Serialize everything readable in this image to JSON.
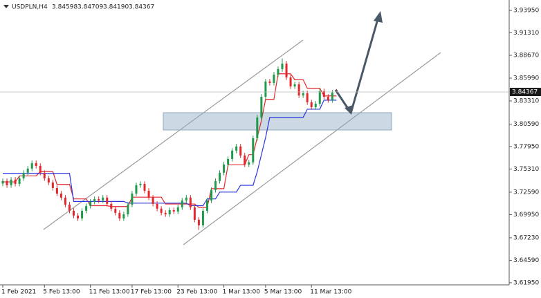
{
  "chart_data": {
    "type": "candlestick",
    "title": "USDPLN,H4",
    "ohlc_labels": [
      "3.84598",
      "3.84709",
      "3.84190",
      "3.84367"
    ],
    "categories": [
      "1 Feb 2021",
      null,
      null,
      null,
      null,
      null,
      null,
      null,
      null,
      null,
      "5 Feb 13:00",
      null,
      null,
      null,
      null,
      null,
      null,
      null,
      null,
      null,
      null,
      "11 Feb 13:00",
      null,
      null,
      null,
      null,
      null,
      null,
      null,
      null,
      null,
      "17 Feb 13:00",
      null,
      null,
      null,
      null,
      null,
      null,
      null,
      null,
      null,
      null,
      "23 Feb 13:00",
      null,
      null,
      null,
      null,
      null,
      null,
      null,
      null,
      null,
      null,
      "1 Mar 13:00",
      null,
      null,
      null,
      null,
      null,
      null,
      null,
      null,
      null,
      "5 Mar 13:00",
      null,
      null,
      null,
      null,
      null,
      null,
      null,
      null,
      null,
      null,
      "11 Mar 13:00",
      null,
      null,
      null,
      null,
      null,
      null
    ],
    "open": [
      3.736,
      3.739,
      3.7341,
      3.7406,
      3.7357,
      3.7422,
      3.7487,
      3.7536,
      3.7601,
      3.7568,
      3.7487,
      3.7422,
      3.7373,
      3.7308,
      3.7243,
      3.7195,
      3.7113,
      3.704,
      3.6984,
      3.6951,
      3.704,
      3.7097,
      3.7146,
      3.7178,
      3.7162,
      3.7195,
      3.7122,
      3.7065,
      3.7016,
      3.6951,
      3.6999,
      3.7113,
      3.7243,
      3.7341,
      3.7357,
      3.7276,
      3.7195,
      3.7122,
      3.7065,
      3.7016,
      3.6999,
      3.7048,
      3.7032,
      3.7081,
      3.7162,
      3.7195,
      3.7081,
      3.6935,
      3.687,
      3.704,
      3.7162,
      3.7284,
      3.739,
      3.7487,
      3.7584,
      3.7649,
      3.7747,
      3.7796,
      3.769,
      3.7584,
      3.7609,
      3.7893,
      3.8137,
      3.838,
      3.8559,
      3.8543,
      3.864,
      3.8705,
      3.877,
      3.8608,
      3.8502,
      3.8526,
      3.8396,
      3.8421,
      3.8315,
      3.8258,
      3.8299,
      3.8445,
      3.838,
      3.834,
      3.84598
    ],
    "high": [
      3.742,
      3.742,
      3.7436,
      3.7436,
      3.7452,
      3.7517,
      3.7566,
      3.7631,
      3.7631,
      3.7598,
      3.7517,
      3.7452,
      3.7403,
      3.7338,
      3.7273,
      3.7225,
      3.7143,
      3.707,
      3.7014,
      3.707,
      3.7127,
      3.7176,
      3.7208,
      3.7208,
      3.7225,
      3.7225,
      3.7152,
      3.7095,
      3.7046,
      3.7029,
      3.7143,
      3.7273,
      3.7371,
      3.7387,
      3.7387,
      3.7306,
      3.7225,
      3.7152,
      3.7095,
      3.7046,
      3.7078,
      3.7078,
      3.7111,
      3.7192,
      3.7225,
      3.7225,
      3.7111,
      3.6965,
      3.707,
      3.7192,
      3.7314,
      3.742,
      3.7517,
      3.7614,
      3.7679,
      3.7777,
      3.7826,
      3.7826,
      3.772,
      3.7639,
      3.7923,
      3.8167,
      3.841,
      3.8589,
      3.8589,
      3.867,
      3.8735,
      3.883,
      3.88,
      3.8638,
      3.8556,
      3.8556,
      3.8451,
      3.8451,
      3.8345,
      3.8329,
      3.8475,
      3.8475,
      3.841,
      3.8459,
      3.84709
    ],
    "low": [
      3.733,
      3.7311,
      3.7311,
      3.7327,
      3.7327,
      3.7392,
      3.7457,
      3.7506,
      3.7538,
      3.7457,
      3.7392,
      3.7343,
      3.7278,
      3.7213,
      3.7165,
      3.7083,
      3.701,
      3.6954,
      3.6921,
      3.6921,
      3.701,
      3.7067,
      3.7116,
      3.7132,
      3.7132,
      3.7092,
      3.7035,
      3.6986,
      3.6921,
      3.6921,
      3.6969,
      3.7083,
      3.7213,
      3.7311,
      3.7246,
      3.7165,
      3.7092,
      3.7035,
      3.6986,
      3.6969,
      3.6969,
      3.7002,
      3.7002,
      3.7051,
      3.7132,
      3.7051,
      3.6905,
      3.6815,
      3.684,
      3.701,
      3.7132,
      3.7254,
      3.736,
      3.7457,
      3.7554,
      3.7619,
      3.7717,
      3.766,
      3.7554,
      3.7554,
      3.7579,
      3.7863,
      3.8107,
      3.835,
      3.8513,
      3.8513,
      3.861,
      3.8675,
      3.8578,
      3.8472,
      3.8472,
      3.8366,
      3.8366,
      3.8285,
      3.8228,
      3.8228,
      3.8269,
      3.835,
      3.831,
      3.831,
      3.8419
    ],
    "close": [
      3.739,
      3.7341,
      3.7406,
      3.7357,
      3.7422,
      3.7487,
      3.7536,
      3.7601,
      3.7568,
      3.7487,
      3.7422,
      3.7373,
      3.7308,
      3.7243,
      3.7195,
      3.7113,
      3.704,
      3.6984,
      3.6951,
      3.704,
      3.7097,
      3.7146,
      3.7178,
      3.7162,
      3.7195,
      3.7122,
      3.7065,
      3.7016,
      3.6951,
      3.6999,
      3.7113,
      3.7243,
      3.7341,
      3.7357,
      3.7276,
      3.7195,
      3.7122,
      3.7065,
      3.7016,
      3.6999,
      3.7048,
      3.7032,
      3.7081,
      3.7162,
      3.7195,
      3.7081,
      3.6935,
      3.687,
      3.704,
      3.7162,
      3.7284,
      3.739,
      3.7487,
      3.7584,
      3.7649,
      3.7747,
      3.7796,
      3.769,
      3.7584,
      3.7609,
      3.7893,
      3.8137,
      3.838,
      3.8559,
      3.8543,
      3.864,
      3.8705,
      3.877,
      3.8608,
      3.8502,
      3.8526,
      3.8396,
      3.8421,
      3.8315,
      3.8258,
      3.8299,
      3.8445,
      3.838,
      3.834,
      3.8429,
      3.84367
    ],
    "up_color": "#1f9a4a",
    "down_color": "#e3262b",
    "series": [
      {
        "color": "#e3262b",
        "values": [
          3.738,
          3.738,
          3.738,
          3.738,
          3.745,
          3.745,
          3.745,
          3.745,
          3.745,
          3.75,
          3.75,
          3.75,
          3.75,
          3.735,
          3.735,
          3.735,
          3.735,
          3.718,
          3.718,
          3.718,
          3.718,
          3.71,
          3.71,
          3.71,
          3.71,
          3.71,
          3.709,
          3.709,
          3.709,
          3.709,
          3.709,
          3.72,
          3.72,
          3.72,
          3.72,
          3.72,
          3.72,
          3.72,
          3.72,
          3.712,
          3.712,
          3.712,
          3.712,
          3.712,
          3.712,
          3.712,
          3.712,
          3.708,
          3.708,
          3.708,
          3.73,
          3.73,
          3.73,
          3.73,
          3.758,
          3.758,
          3.758,
          3.758,
          3.758,
          3.77,
          3.77,
          3.79,
          3.81,
          3.835,
          3.835,
          3.835,
          3.865,
          3.865,
          3.865,
          3.865,
          3.858,
          3.858,
          3.858,
          3.848,
          3.848,
          3.848,
          3.848,
          3.839,
          3.839,
          3.839,
          3.839
        ]
      },
      {
        "color": "#2a35e0",
        "values": [
          3.748,
          3.748,
          3.748,
          3.748,
          3.748,
          3.748,
          3.748,
          3.748,
          3.748,
          3.748,
          3.748,
          3.748,
          3.748,
          3.748,
          3.748,
          3.748,
          3.748,
          3.715,
          3.715,
          3.715,
          3.715,
          3.715,
          3.715,
          3.715,
          3.715,
          3.715,
          3.715,
          3.715,
          3.715,
          3.715,
          3.713,
          3.713,
          3.713,
          3.713,
          3.713,
          3.713,
          3.713,
          3.713,
          3.713,
          3.713,
          3.713,
          3.713,
          3.713,
          3.713,
          3.713,
          3.71,
          3.71,
          3.71,
          3.71,
          3.718,
          3.718,
          3.718,
          3.726,
          3.726,
          3.726,
          3.726,
          3.726,
          3.734,
          3.734,
          3.734,
          3.734,
          3.75,
          3.77,
          3.79,
          3.8137,
          3.8137,
          3.8137,
          3.8137,
          3.8137,
          3.8137,
          3.8137,
          3.8137,
          3.8137,
          3.8234,
          3.8234,
          3.8234,
          3.8234,
          3.834,
          3.834,
          3.834,
          3.834
        ]
      }
    ],
    "ylim": [
      3.617,
      3.9517
    ],
    "yticks": [
      {
        "value": 3.9395,
        "label": "3.93950"
      },
      {
        "value": 3.9131,
        "label": "3.91310"
      },
      {
        "value": 3.8867,
        "label": "3.88670"
      },
      {
        "value": 3.8599,
        "label": "3.85990"
      },
      {
        "value": 3.8331,
        "label": "3.83310"
      },
      {
        "value": 3.8059,
        "label": "3.80590"
      },
      {
        "value": 3.7795,
        "label": "3.77950"
      },
      {
        "value": 3.7531,
        "label": "3.75310"
      },
      {
        "value": 3.7259,
        "label": "3.72590"
      },
      {
        "value": 3.6995,
        "label": "3.69950"
      },
      {
        "value": 3.6723,
        "label": "3.67230"
      },
      {
        "value": 3.6459,
        "label": "3.64590"
      },
      {
        "value": 3.6195,
        "label": "3.61950"
      }
    ]
  }
}
